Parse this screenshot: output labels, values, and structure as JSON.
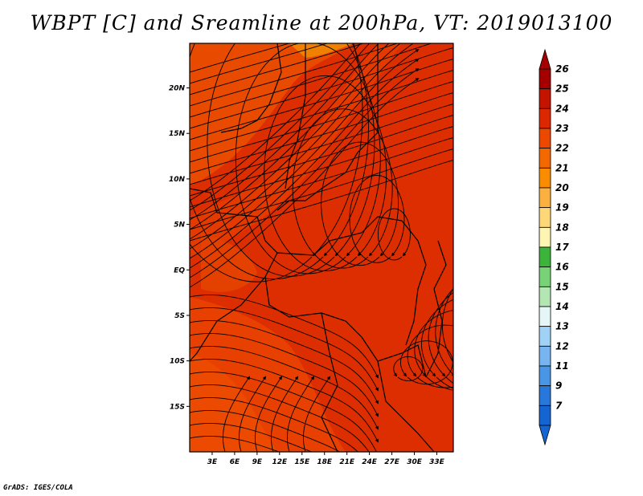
{
  "title": "WBPT [C] and Sreamline at 200hPa, VT: 2019013100",
  "credit": "GrADS: IGES/COLA",
  "map": {
    "field": "WBPT",
    "level": "200hPa",
    "valid_time": "2019013100",
    "lat_ticks": [
      "20N",
      "15N",
      "10N",
      "5N",
      "EQ",
      "5S",
      "10S",
      "15S"
    ],
    "lat_values": [
      20,
      15,
      10,
      5,
      0,
      -5,
      -10,
      -15
    ],
    "lon_ticks": [
      "3E",
      "6E",
      "9E",
      "12E",
      "15E",
      "18E",
      "21E",
      "24E",
      "27E",
      "30E",
      "33E"
    ],
    "lon_values": [
      3,
      6,
      9,
      12,
      15,
      18,
      21,
      24,
      27,
      30,
      33
    ]
  },
  "colorbar": {
    "labels": [
      "26",
      "25",
      "24",
      "23",
      "22",
      "21",
      "20",
      "19",
      "18",
      "17",
      "16",
      "15",
      "14",
      "13",
      "12",
      "11",
      "9",
      "7"
    ],
    "colors": [
      "#a50000",
      "#c41400",
      "#dc2800",
      "#ec4800",
      "#f46800",
      "#fa8c00",
      "#fcb040",
      "#fed878",
      "#fef4b4",
      "#3cb43c",
      "#78d278",
      "#b4e6b4",
      "#e6f6f6",
      "#a0d2f6",
      "#78b4f0",
      "#4a96e6",
      "#2878dc",
      "#1464d2"
    ]
  }
}
